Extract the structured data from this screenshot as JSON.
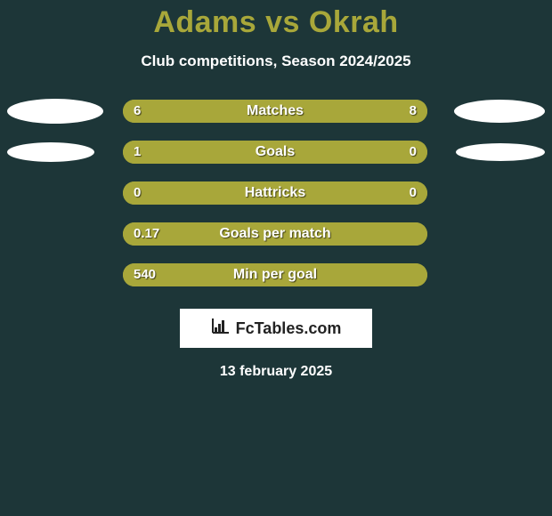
{
  "colors": {
    "background": "#1d3638",
    "title": "#a8a73a",
    "subtitle": "#ffffff",
    "track": "#a8a73a",
    "left_fill": "#a8a73a",
    "right_fill": "#a8a73a",
    "bar_label": "#ffffff",
    "val_text": "#ffffff",
    "ellipse": "#ffffff",
    "logo_bg": "#ffffff",
    "logo_text": "#222222",
    "date_text": "#ffffff"
  },
  "title": "Adams vs Okrah",
  "subtitle": "Club competitions, Season 2024/2025",
  "ellipse_sizes": {
    "matches": {
      "left_w": 108,
      "left_h": 28,
      "right_w": 102,
      "right_h": 26
    },
    "goals": {
      "left_w": 98,
      "left_h": 22,
      "right_w": 100,
      "right_h": 20
    }
  },
  "bar_track_width": 342,
  "stats": [
    {
      "key": "matches",
      "label": "Matches",
      "left_val": "6",
      "right_val": "8",
      "left_pct": 40,
      "right_pct": 60,
      "show_ellipses": true,
      "ellipse_key": "matches"
    },
    {
      "key": "goals",
      "label": "Goals",
      "left_val": "1",
      "right_val": "0",
      "left_pct": 77,
      "right_pct": 23,
      "show_ellipses": true,
      "ellipse_key": "goals"
    },
    {
      "key": "hattricks",
      "label": "Hattricks",
      "left_val": "0",
      "right_val": "0",
      "left_pct": 100,
      "right_pct": 0,
      "show_ellipses": false
    },
    {
      "key": "gpm",
      "label": "Goals per match",
      "left_val": "0.17",
      "right_val": "",
      "left_pct": 100,
      "right_pct": 0,
      "show_ellipses": false
    },
    {
      "key": "mpg",
      "label": "Min per goal",
      "left_val": "540",
      "right_val": "",
      "left_pct": 100,
      "right_pct": 0,
      "show_ellipses": false
    }
  ],
  "logo_text": "FcTables.com",
  "date_text": "13 february 2025"
}
